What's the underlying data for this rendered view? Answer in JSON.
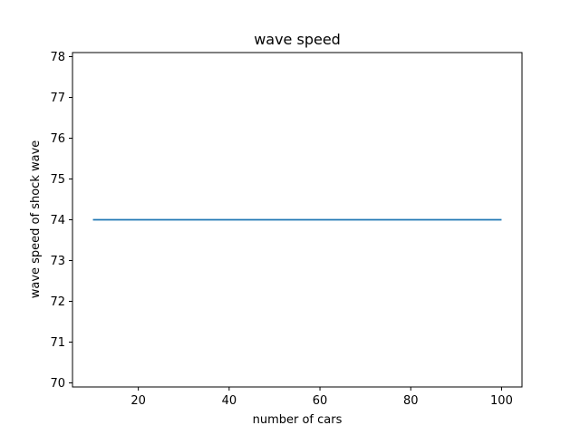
{
  "chart_data": {
    "type": "line",
    "title": "wave speed",
    "xlabel": "number of cars",
    "ylabel": "wave speed of shock wave",
    "xlim": [
      5.5,
      104.5
    ],
    "ylim": [
      69.9,
      78.1
    ],
    "xticks": [
      20,
      40,
      60,
      80,
      100
    ],
    "yticks": [
      70,
      71,
      72,
      73,
      74,
      75,
      76,
      77,
      78
    ],
    "grid": false,
    "series": [
      {
        "color": "#1f77b4",
        "x": [
          10,
          20,
          30,
          40,
          50,
          60,
          70,
          80,
          90,
          100
        ],
        "y": [
          74,
          74,
          74,
          74,
          74,
          74,
          74,
          74,
          74,
          74
        ]
      }
    ]
  }
}
